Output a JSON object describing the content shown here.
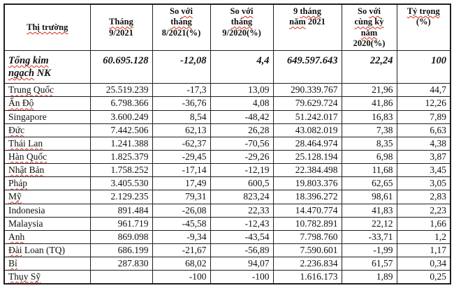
{
  "table": {
    "columns": [
      {
        "key": "market",
        "lines": [
          [
            [
              "Thị trường",
              1
            ]
          ]
        ]
      },
      {
        "key": "month-9-2021",
        "lines": [
          [
            [
              "Tháng",
              1
            ]
          ],
          [
            [
              "9/2021",
              0
            ]
          ]
        ]
      },
      {
        "key": "vs-month-8-2021",
        "lines": [
          [
            [
              "So ",
              0
            ],
            [
              "với",
              1
            ]
          ],
          [
            [
              "tháng",
              1
            ]
          ],
          [
            [
              "8/2021(%)",
              0
            ]
          ]
        ]
      },
      {
        "key": "vs-month-9-2020",
        "lines": [
          [
            [
              "So ",
              0
            ],
            [
              "với",
              1
            ]
          ],
          [
            [
              "tháng",
              1
            ]
          ],
          [
            [
              "9/2020(%)",
              0
            ]
          ]
        ]
      },
      {
        "key": "nine-months-2021",
        "lines": [
          [
            [
              "9 ",
              0
            ],
            [
              "tháng",
              1
            ]
          ],
          [
            [
              "năm",
              1
            ],
            [
              " 2021",
              0
            ]
          ]
        ]
      },
      {
        "key": "vs-same-period-2020",
        "lines": [
          [
            [
              "So ",
              0
            ],
            [
              "với",
              1
            ]
          ],
          [
            [
              "cùng kỳ",
              1
            ]
          ],
          [
            [
              "năm",
              1
            ]
          ],
          [
            [
              "2020(%)",
              0
            ]
          ]
        ]
      },
      {
        "key": "share-percent",
        "lines": [
          [
            [
              "Tỷ trọng",
              1
            ]
          ],
          [
            [
              "(%)",
              0
            ]
          ]
        ]
      }
    ],
    "total_row": {
      "label_lines": [
        [
          [
            "Tổng kim",
            1
          ]
        ],
        [
          [
            "ngạch",
            1
          ],
          [
            " NK",
            0
          ]
        ]
      ],
      "values": [
        "60.695.128",
        "-12,08",
        "4,4",
        "649.597.643",
        "22,24",
        "100"
      ]
    },
    "rows": [
      {
        "name": [
          [
            "Trung Quốc",
            1
          ]
        ],
        "values": [
          "25.519.239",
          "-17,3",
          "13,09",
          "290.339.767",
          "21,96",
          "44,7"
        ]
      },
      {
        "name": [
          [
            "Ấn Độ",
            1
          ]
        ],
        "values": [
          "6.798.366",
          "-36,76",
          "4,08",
          "79.629.724",
          "41,86",
          "12,26"
        ]
      },
      {
        "name": [
          [
            "Singapore",
            0
          ]
        ],
        "values": [
          "3.600.249",
          "8,54",
          "-48,42",
          "51.242.017",
          "16,83",
          "7,89"
        ]
      },
      {
        "name": [
          [
            "Đức",
            1
          ]
        ],
        "values": [
          "7.442.506",
          "62,13",
          "26,28",
          "43.082.019",
          "7,38",
          "6,63"
        ]
      },
      {
        "name": [
          [
            "Thái Lan",
            1
          ]
        ],
        "values": [
          "1.241.388",
          "-62,37",
          "-70,56",
          "28.464.974",
          "8,35",
          "4,38"
        ]
      },
      {
        "name": [
          [
            "Hàn Quốc",
            1
          ]
        ],
        "values": [
          "1.825.379",
          "-29,45",
          "-29,26",
          "25.128.194",
          "6,98",
          "3,87"
        ]
      },
      {
        "name": [
          [
            "Nhật Bản",
            1
          ]
        ],
        "values": [
          "1.758.252",
          "-17,14",
          "-12,19",
          "22.384.498",
          "11,68",
          "3,45"
        ]
      },
      {
        "name": [
          [
            "Pháp",
            1
          ]
        ],
        "values": [
          "3.405.530",
          "17,49",
          "600,5",
          "19.803.376",
          "62,65",
          "3,05"
        ]
      },
      {
        "name": [
          [
            "Mỹ",
            1
          ]
        ],
        "values": [
          "2.129.235",
          "79,31",
          "823,24",
          "18.396.272",
          "98,61",
          "2,83"
        ]
      },
      {
        "name": [
          [
            "Indonesia",
            0
          ]
        ],
        "values": [
          "891.484",
          "-26,08",
          "22,33",
          "14.470.774",
          "41,83",
          "2,23"
        ]
      },
      {
        "name": [
          [
            "Malaysia",
            0
          ]
        ],
        "values": [
          "961.719",
          "-45,58",
          "-12,43",
          "10.782.891",
          "22,12",
          "1,66"
        ]
      },
      {
        "name": [
          [
            "Anh",
            1
          ]
        ],
        "values": [
          "869.098",
          "-9,34",
          "-43,54",
          "7.798.760",
          "-33,71",
          "1,2"
        ]
      },
      {
        "name": [
          [
            "Đài",
            1
          ],
          [
            " Loan (TQ)",
            0
          ]
        ],
        "values": [
          "686.199",
          "-21,67",
          "-56,89",
          "7.590.601",
          "-1,99",
          "1,17"
        ]
      },
      {
        "name": [
          [
            "Bỉ",
            1
          ]
        ],
        "values": [
          "287.830",
          "68,02",
          "94,07",
          "2.236.834",
          "61,57",
          "0,34"
        ]
      },
      {
        "name": [
          [
            "Thụy Sỹ",
            1
          ]
        ],
        "values": [
          "",
          "-100",
          "-100",
          "1.616.173",
          "1,89",
          "0,25"
        ]
      }
    ]
  },
  "colors": {
    "text": "#101010",
    "border": "#1f1f1f",
    "spellcheck_squiggle": "#d6281a",
    "background": "#ffffff"
  }
}
